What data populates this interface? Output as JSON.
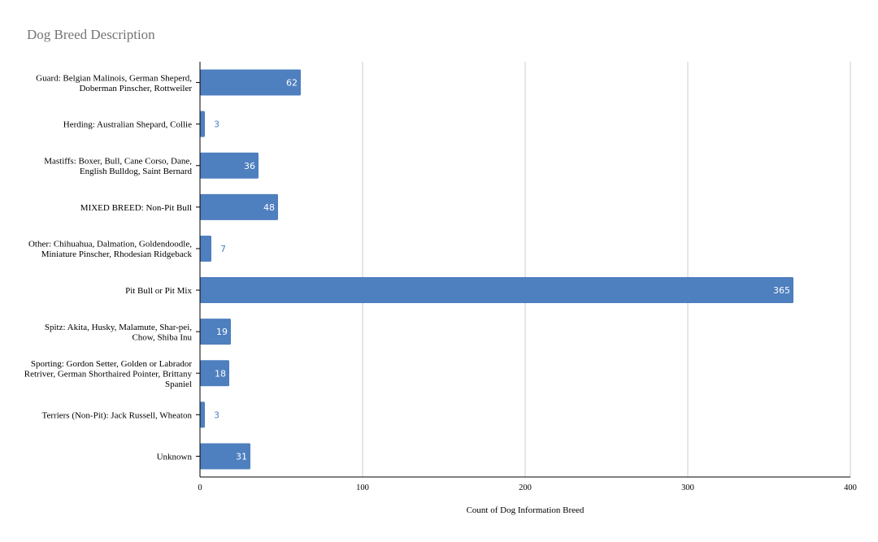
{
  "chart_data": {
    "type": "bar",
    "orientation": "horizontal",
    "title": "Dog Breed Description",
    "xlabel": "Count of Dog Information Breed",
    "ylabel": "",
    "xlim": [
      0,
      400
    ],
    "xticks": [
      0,
      100,
      200,
      300,
      400
    ],
    "grid": true,
    "bar_color": "#4e7fbf",
    "title_color": "#757575",
    "inside_label_color": "#ffffff",
    "outside_label_color": "#4e7fbf",
    "categories": [
      [
        "Guard: Belgian Malinois, German Sheperd,",
        "Doberman Pinscher, Rottweiler"
      ],
      [
        "Herding: Australian Shepard, Collie"
      ],
      [
        "Mastiffs: Boxer, Bull, Cane Corso, Dane,",
        "English Bulldog, Saint Bernard"
      ],
      [
        "MIXED BREED: Non-Pit Bull"
      ],
      [
        "Other: Chihuahua, Dalmation, Goldendoodle,",
        "Miniature Pinscher, Rhodesian Ridgeback"
      ],
      [
        "Pit Bull or Pit Mix"
      ],
      [
        "Spitz: Akita, Husky, Malamute, Shar-pei,",
        "Chow, Shiba Inu"
      ],
      [
        "Sporting: Gordon Setter, Golden or Labrador",
        "Retriver, German Shorthaired Pointer, Brittany",
        "Spaniel"
      ],
      [
        "Terriers (Non-Pit): Jack Russell, Wheaton"
      ],
      [
        "Unknown"
      ]
    ],
    "values": [
      62,
      3,
      36,
      48,
      7,
      365,
      19,
      18,
      3,
      31
    ]
  }
}
